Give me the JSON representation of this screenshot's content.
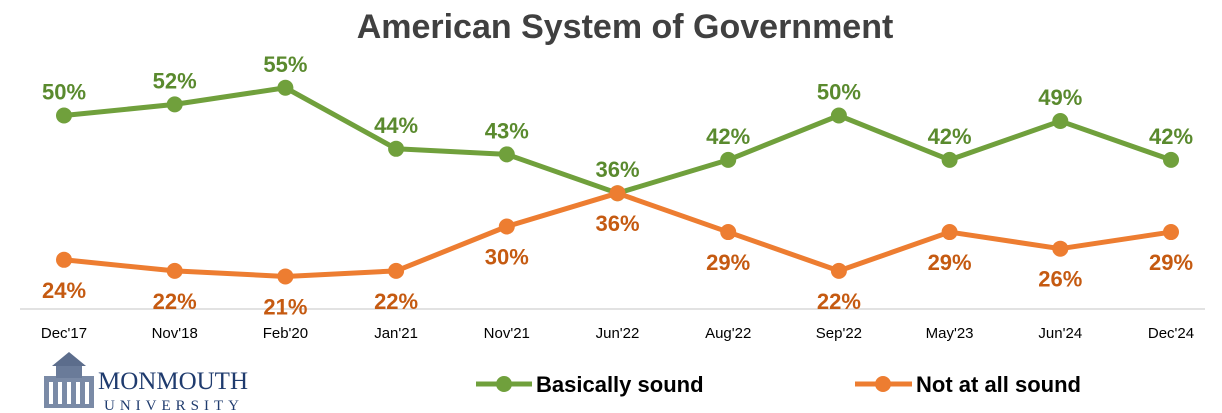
{
  "chart_data": {
    "type": "line",
    "title": "American System of Government",
    "categories": [
      "Dec'17",
      "Nov'18",
      "Feb'20",
      "Jan'21",
      "Nov'21",
      "Jun'22",
      "Aug'22",
      "Sep'22",
      "May'23",
      "Jun'24",
      "Dec'24"
    ],
    "series": [
      {
        "name": "Basically sound",
        "color": "#70a03c",
        "label_color": "#5a8a2e",
        "values": [
          50,
          52,
          55,
          44,
          43,
          36,
          42,
          50,
          42,
          49,
          42
        ]
      },
      {
        "name": "Not at all sound",
        "color": "#ed7d31",
        "label_color": "#c55a11",
        "values": [
          24,
          22,
          21,
          22,
          30,
          36,
          29,
          22,
          29,
          26,
          29
        ]
      }
    ],
    "value_suffix": "%",
    "legend_position": "bottom",
    "grid": false
  },
  "logo": {
    "name": "MONMOUTH",
    "sub": "UNIVERSITY"
  }
}
